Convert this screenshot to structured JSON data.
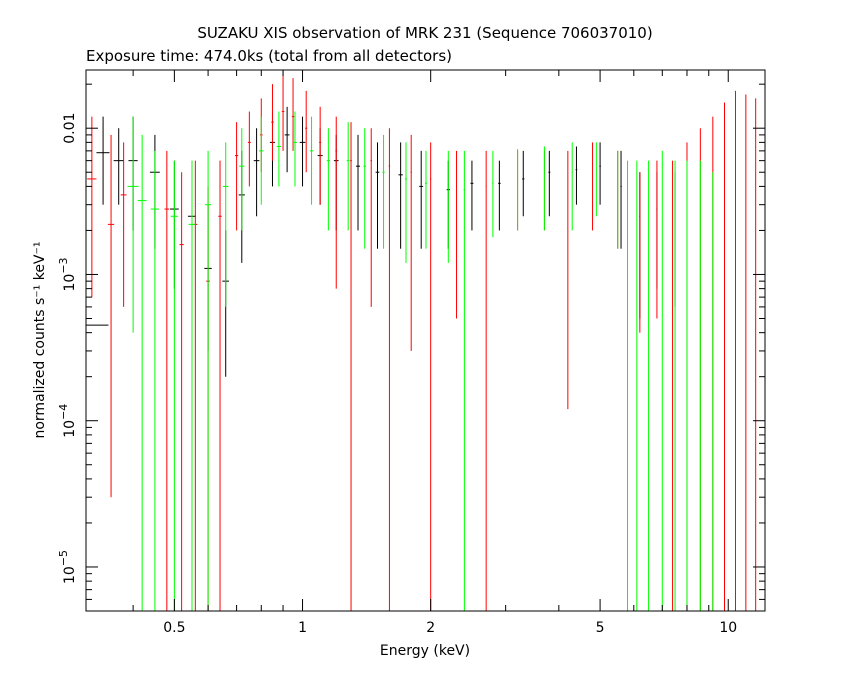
{
  "chart_data": {
    "type": "scatter",
    "title": "SUZAKU XIS observation of MRK 231 (Sequence 706037010)",
    "subtitle": "Exposure time: 474.0ks (total from all detectors)",
    "xlabel": "Energy (keV)",
    "ylabel": "normalized counts s⁻¹ keV⁻¹",
    "x_scale": "log",
    "y_scale": "log",
    "xlim": [
      0.31,
      12.2
    ],
    "ylim": [
      5e-06,
      0.025
    ],
    "grid": false,
    "x_ticks": [
      {
        "value": 0.5,
        "label": "0.5"
      },
      {
        "value": 1,
        "label": "1"
      },
      {
        "value": 2,
        "label": "2"
      },
      {
        "value": 5,
        "label": "5"
      },
      {
        "value": 10,
        "label": "10"
      }
    ],
    "y_ticks": [
      {
        "value": 0.01,
        "label": "0.01",
        "mantissa": "",
        "exp": ""
      },
      {
        "value": 0.001,
        "label": "",
        "mantissa": "10",
        "exp": "−3"
      },
      {
        "value": 0.0001,
        "label": "",
        "mantissa": "10",
        "exp": "−4"
      },
      {
        "value": 1e-05,
        "label": "",
        "mantissa": "10",
        "exp": "−5"
      }
    ],
    "series": [
      {
        "color": "#000000",
        "points": [
          {
            "x": 0.32,
            "y": 0.00045,
            "xerr": 0.03,
            "ylo": 0.00045,
            "yhi": 0.00045
          },
          {
            "x": 0.34,
            "y": 0.0068,
            "xerr": 0.012,
            "ylo": 0.003,
            "yhi": 0.012
          },
          {
            "x": 0.37,
            "y": 0.006,
            "xerr": 0.01,
            "ylo": 0.003,
            "yhi": 0.01
          },
          {
            "x": 0.4,
            "y": 0.006,
            "xerr": 0.01,
            "ylo": 0.002,
            "yhi": 0.012
          },
          {
            "x": 0.45,
            "y": 0.005,
            "xerr": 0.012,
            "ylo": 0.0015,
            "yhi": 0.009
          },
          {
            "x": 0.5,
            "y": 0.0028,
            "xerr": 0.012,
            "ylo": 0.0008,
            "yhi": 0.006
          },
          {
            "x": 0.55,
            "y": 0.0025,
            "xerr": 0.012,
            "ylo": 0.0006,
            "yhi": 0.005
          },
          {
            "x": 0.6,
            "y": 0.0011,
            "xerr": 0.012,
            "ylo": 0.0003,
            "yhi": 0.003
          },
          {
            "x": 0.66,
            "y": 0.0009,
            "xerr": 0.012,
            "ylo": 0.0002,
            "yhi": 0.002
          },
          {
            "x": 0.72,
            "y": 0.0035,
            "xerr": 0.012,
            "ylo": 0.0012,
            "yhi": 0.007
          },
          {
            "x": 0.78,
            "y": 0.006,
            "xerr": 0.012,
            "ylo": 0.0025,
            "yhi": 0.01
          },
          {
            "x": 0.85,
            "y": 0.008,
            "xerr": 0.012,
            "ylo": 0.004,
            "yhi": 0.013
          },
          {
            "x": 0.92,
            "y": 0.009,
            "xerr": 0.012,
            "ylo": 0.005,
            "yhi": 0.014
          },
          {
            "x": 1.0,
            "y": 0.008,
            "xerr": 0.015,
            "ylo": 0.004,
            "yhi": 0.012
          },
          {
            "x": 1.1,
            "y": 0.0065,
            "xerr": 0.015,
            "ylo": 0.003,
            "yhi": 0.01
          },
          {
            "x": 1.2,
            "y": 0.006,
            "xerr": 0.015,
            "ylo": 0.002,
            "yhi": 0.009
          },
          {
            "x": 1.35,
            "y": 0.0055,
            "xerr": 0.015,
            "ylo": 0.002,
            "yhi": 0.009
          },
          {
            "x": 1.5,
            "y": 0.005,
            "xerr": 0.015,
            "ylo": 0.0015,
            "yhi": 0.008
          },
          {
            "x": 1.7,
            "y": 0.0048,
            "xerr": 0.02,
            "ylo": 0.0015,
            "yhi": 0.008
          },
          {
            "x": 1.9,
            "y": 0.004,
            "xerr": 0.02,
            "ylo": 0.0015,
            "yhi": 0.007
          },
          {
            "x": 2.2,
            "y": 0.0038,
            "xerr": 0.02,
            "ylo": 0.0015,
            "yhi": 0.006
          },
          {
            "x": 2.5,
            "y": 0.0042,
            "xerr": 0.02,
            "ylo": 0.002,
            "yhi": 0.006
          },
          {
            "x": 2.9,
            "y": 0.0042,
            "xerr": 0.02,
            "ylo": 0.002,
            "yhi": 0.006
          },
          {
            "x": 3.3,
            "y": 0.0045,
            "xerr": 0.02,
            "ylo": 0.0025,
            "yhi": 0.007
          },
          {
            "x": 3.8,
            "y": 0.005,
            "xerr": 0.02,
            "ylo": 0.0025,
            "yhi": 0.007
          },
          {
            "x": 4.4,
            "y": 0.0052,
            "xerr": 0.02,
            "ylo": 0.003,
            "yhi": 0.0075
          },
          {
            "x": 5.0,
            "y": 0.0055,
            "xerr": 0.02,
            "ylo": 0.003,
            "yhi": 0.008
          },
          {
            "x": 5.6,
            "y": 0.004,
            "xerr": 0.02,
            "ylo": 0.0015,
            "yhi": 0.007
          },
          {
            "x": 6.2,
            "y": 0.0025,
            "xerr": 0.02,
            "ylo": 0.0005,
            "yhi": 0.005
          },
          {
            "x": 6.8,
            "y": 0.0028,
            "xerr": 0.02,
            "ylo": 0.0008,
            "yhi": 0.005
          },
          {
            "x": 7.5,
            "y": 0.0025,
            "xerr": 0.02,
            "ylo": 0.0006,
            "yhi": 0.005
          }
        ]
      },
      {
        "color": "#ff0000",
        "points": [
          {
            "x": 0.32,
            "y": 0.0045,
            "xerr": 0.008,
            "ylo": 0.0007,
            "yhi": 0.012
          },
          {
            "x": 0.355,
            "y": 0.0022,
            "xerr": 0.006,
            "ylo": 3e-05,
            "yhi": 0.009
          },
          {
            "x": 0.38,
            "y": 0.0035,
            "xerr": 0.006,
            "ylo": 0.0006,
            "yhi": 0.008
          },
          {
            "x": 0.48,
            "y": 0.0028,
            "xerr": 0.006,
            "ylo": 5e-06,
            "yhi": 0.007
          },
          {
            "x": 0.52,
            "y": 0.0016,
            "xerr": 0.006,
            "ylo": 5e-06,
            "yhi": 0.005
          },
          {
            "x": 0.56,
            "y": 0.0022,
            "xerr": 0.006,
            "ylo": 5e-06,
            "yhi": 0.006
          },
          {
            "x": 0.6,
            "y": 0.0009,
            "xerr": 0.006,
            "ylo": 5e-06,
            "yhi": 0.004
          },
          {
            "x": 0.64,
            "y": 0.0025,
            "xerr": 0.006,
            "ylo": 5e-06,
            "yhi": 0.006
          },
          {
            "x": 0.7,
            "y": 0.0065,
            "xerr": 0.006,
            "ylo": 0.002,
            "yhi": 0.011
          },
          {
            "x": 0.75,
            "y": 0.008,
            "xerr": 0.006,
            "ylo": 0.004,
            "yhi": 0.013
          },
          {
            "x": 0.8,
            "y": 0.009,
            "xerr": 0.006,
            "ylo": 0.005,
            "yhi": 0.016
          },
          {
            "x": 0.85,
            "y": 0.011,
            "xerr": 0.006,
            "ylo": 0.006,
            "yhi": 0.02
          },
          {
            "x": 0.9,
            "y": 0.013,
            "xerr": 0.006,
            "ylo": 0.007,
            "yhi": 0.025
          },
          {
            "x": 0.95,
            "y": 0.012,
            "xerr": 0.006,
            "ylo": 0.007,
            "yhi": 0.022
          },
          {
            "x": 1.02,
            "y": 0.01,
            "xerr": 0.006,
            "ylo": 0.005,
            "yhi": 0.018
          },
          {
            "x": 1.1,
            "y": 0.008,
            "xerr": 0.006,
            "ylo": 0.003,
            "yhi": 0.014
          },
          {
            "x": 1.2,
            "y": 0.007,
            "xerr": 0.006,
            "ylo": 0.0008,
            "yhi": 0.012
          },
          {
            "x": 1.3,
            "y": 0.006,
            "xerr": 0.006,
            "ylo": 5e-06,
            "yhi": 0.011
          },
          {
            "x": 1.45,
            "y": 0.006,
            "xerr": 0.006,
            "ylo": 0.0006,
            "yhi": 0.01
          },
          {
            "x": 1.6,
            "y": 0.0055,
            "xerr": 0.006,
            "ylo": 5e-06,
            "yhi": 0.01
          },
          {
            "x": 1.8,
            "y": 0.005,
            "xerr": 0.006,
            "ylo": 0.0003,
            "yhi": 0.009
          },
          {
            "x": 2.0,
            "y": 0.0045,
            "xerr": 0.006,
            "ylo": 5e-06,
            "yhi": 0.008
          },
          {
            "x": 2.3,
            "y": 0.004,
            "xerr": 0.006,
            "ylo": 0.0005,
            "yhi": 0.007
          },
          {
            "x": 2.7,
            "y": 0.004,
            "xerr": 0.006,
            "ylo": 5e-06,
            "yhi": 0.007
          },
          {
            "x": 3.2,
            "y": 0.0045,
            "xerr": 0.006,
            "ylo": 0.002,
            "yhi": 0.007
          },
          {
            "x": 3.7,
            "y": 0.0048,
            "xerr": 0.006,
            "ylo": 0.002,
            "yhi": 0.007
          },
          {
            "x": 4.2,
            "y": 0.0045,
            "xerr": 0.006,
            "ylo": 0.00012,
            "yhi": 0.007
          },
          {
            "x": 4.8,
            "y": 0.005,
            "xerr": 0.006,
            "ylo": 0.002,
            "yhi": 0.008
          },
          {
            "x": 5.5,
            "y": 0.0045,
            "xerr": 0.006,
            "ylo": 0.0015,
            "yhi": 0.007
          },
          {
            "x": 6.2,
            "y": 0.0025,
            "xerr": 0.006,
            "ylo": 0.0004,
            "yhi": 0.005
          },
          {
            "x": 6.8,
            "y": 0.003,
            "xerr": 0.006,
            "ylo": 0.0005,
            "yhi": 0.006
          },
          {
            "x": 7.4,
            "y": 0.0028,
            "xerr": 0.006,
            "ylo": 5e-06,
            "yhi": 0.006
          },
          {
            "x": 8.0,
            "y": 0.0035,
            "xerr": 0.006,
            "ylo": 5e-06,
            "yhi": 0.008
          },
          {
            "x": 8.6,
            "y": 0.004,
            "xerr": 0.006,
            "ylo": 5e-06,
            "yhi": 0.01
          },
          {
            "x": 9.2,
            "y": 0.0045,
            "xerr": 0.006,
            "ylo": 5e-06,
            "yhi": 0.012
          },
          {
            "x": 9.8,
            "y": 0.005,
            "xerr": 0.006,
            "ylo": 5e-06,
            "yhi": 0.015
          },
          {
            "x": 10.4,
            "y": 0.006,
            "xerr": 0.006,
            "ylo": 5e-06,
            "yhi": 0.018
          },
          {
            "x": 11.0,
            "y": 0.006,
            "xerr": 0.006,
            "ylo": 5e-06,
            "yhi": 0.017
          },
          {
            "x": 11.6,
            "y": 0.0065,
            "xerr": 0.006,
            "ylo": 5e-06,
            "yhi": 0.016
          }
        ]
      },
      {
        "color": "#00ff00",
        "points": [
          {
            "x": 0.4,
            "y": 0.004,
            "xerr": 0.012,
            "ylo": 0.0004,
            "yhi": 0.012
          },
          {
            "x": 0.42,
            "y": 0.0032,
            "xerr": 0.01,
            "ylo": 5e-06,
            "yhi": 0.009
          },
          {
            "x": 0.45,
            "y": 0.0028,
            "xerr": 0.01,
            "ylo": 5e-06,
            "yhi": 0.007
          },
          {
            "x": 0.5,
            "y": 0.0025,
            "xerr": 0.01,
            "ylo": 5e-06,
            "yhi": 0.006
          },
          {
            "x": 0.55,
            "y": 0.0022,
            "xerr": 0.01,
            "ylo": 5e-06,
            "yhi": 0.006
          },
          {
            "x": 0.6,
            "y": 0.003,
            "xerr": 0.01,
            "ylo": 5e-06,
            "yhi": 0.007
          },
          {
            "x": 0.66,
            "y": 0.004,
            "xerr": 0.01,
            "ylo": 0.0006,
            "yhi": 0.008
          },
          {
            "x": 0.72,
            "y": 0.0055,
            "xerr": 0.01,
            "ylo": 0.002,
            "yhi": 0.01
          },
          {
            "x": 0.8,
            "y": 0.007,
            "xerr": 0.01,
            "ylo": 0.003,
            "yhi": 0.012
          },
          {
            "x": 0.88,
            "y": 0.0075,
            "xerr": 0.01,
            "ylo": 0.004,
            "yhi": 0.013
          },
          {
            "x": 0.96,
            "y": 0.008,
            "xerr": 0.01,
            "ylo": 0.004,
            "yhi": 0.013
          },
          {
            "x": 1.05,
            "y": 0.007,
            "xerr": 0.01,
            "ylo": 0.003,
            "yhi": 0.012
          },
          {
            "x": 1.15,
            "y": 0.006,
            "xerr": 0.01,
            "ylo": 0.002,
            "yhi": 0.01
          },
          {
            "x": 1.28,
            "y": 0.006,
            "xerr": 0.01,
            "ylo": 0.002,
            "yhi": 0.011
          },
          {
            "x": 1.4,
            "y": 0.0055,
            "xerr": 0.01,
            "ylo": 0.0015,
            "yhi": 0.01
          },
          {
            "x": 1.55,
            "y": 0.005,
            "xerr": 0.01,
            "ylo": 0.0015,
            "yhi": 0.009
          },
          {
            "x": 1.75,
            "y": 0.0045,
            "xerr": 0.01,
            "ylo": 0.0012,
            "yhi": 0.008
          },
          {
            "x": 1.95,
            "y": 0.0042,
            "xerr": 0.01,
            "ylo": 0.0015,
            "yhi": 0.007
          },
          {
            "x": 2.2,
            "y": 0.004,
            "xerr": 0.01,
            "ylo": 0.0012,
            "yhi": 0.007
          },
          {
            "x": 2.4,
            "y": 0.0038,
            "xerr": 0.01,
            "ylo": 5e-06,
            "yhi": 0.007
          },
          {
            "x": 2.8,
            "y": 0.0042,
            "xerr": 0.01,
            "ylo": 0.0018,
            "yhi": 0.007
          },
          {
            "x": 3.2,
            "y": 0.0045,
            "xerr": 0.01,
            "ylo": 0.002,
            "yhi": 0.0072
          },
          {
            "x": 3.7,
            "y": 0.0048,
            "xerr": 0.01,
            "ylo": 0.002,
            "yhi": 0.0075
          },
          {
            "x": 4.3,
            "y": 0.005,
            "xerr": 0.01,
            "ylo": 0.002,
            "yhi": 0.008
          },
          {
            "x": 4.9,
            "y": 0.0052,
            "xerr": 0.01,
            "ylo": 0.0025,
            "yhi": 0.008
          },
          {
            "x": 5.5,
            "y": 0.0045,
            "xerr": 0.01,
            "ylo": 0.0015,
            "yhi": 0.007
          },
          {
            "x": 5.8,
            "y": 0.003,
            "xerr": 0.01,
            "ylo": 5e-06,
            "yhi": 0.006
          },
          {
            "x": 6.1,
            "y": 0.0028,
            "xerr": 0.01,
            "ylo": 5e-06,
            "yhi": 0.006
          },
          {
            "x": 6.5,
            "y": 0.003,
            "xerr": 0.01,
            "ylo": 5e-06,
            "yhi": 0.006
          },
          {
            "x": 7.0,
            "y": 0.0035,
            "xerr": 0.01,
            "ylo": 5e-06,
            "yhi": 0.007
          },
          {
            "x": 7.5,
            "y": 0.003,
            "xerr": 0.01,
            "ylo": 5e-06,
            "yhi": 0.006
          },
          {
            "x": 8.0,
            "y": 0.003,
            "xerr": 0.01,
            "ylo": 5e-06,
            "yhi": 0.006
          },
          {
            "x": 8.6,
            "y": 0.0025,
            "xerr": 0.01,
            "ylo": 5e-06,
            "yhi": 0.006
          },
          {
            "x": 9.2,
            "y": 0.002,
            "xerr": 0.01,
            "ylo": 5e-06,
            "yhi": 0.005
          }
        ]
      }
    ]
  }
}
